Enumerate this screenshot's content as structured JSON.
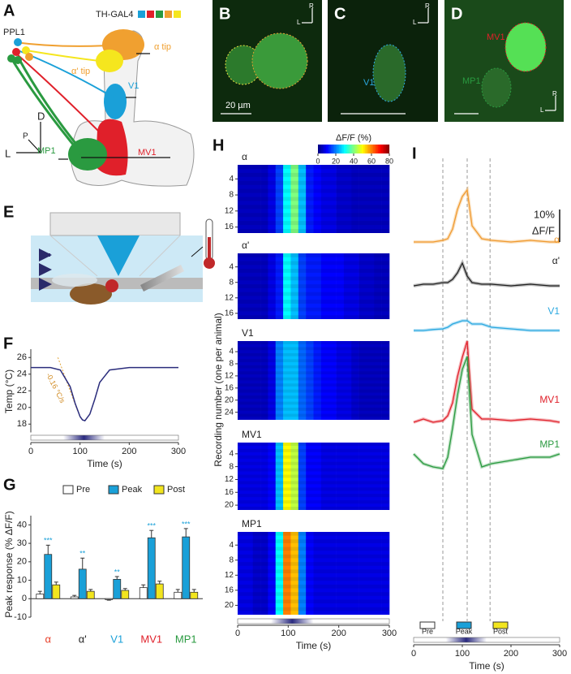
{
  "panel_labels": [
    "A",
    "B",
    "C",
    "D",
    "E",
    "F",
    "G",
    "H",
    "I"
  ],
  "anatomy": {
    "driver": "TH-GAL4",
    "cluster": "PPL1",
    "regions": [
      "α tip",
      "α' tip",
      "V1",
      "MV1",
      "MP1"
    ],
    "orientation": [
      "D",
      "P",
      "L"
    ]
  },
  "images": [
    {
      "orientation": [
        "R",
        "L"
      ],
      "scale_bar": "20 µm"
    },
    {
      "orientation": [
        "R",
        "L"
      ],
      "regions": [
        "V1"
      ]
    },
    {
      "orientation": [
        "R",
        "L"
      ],
      "regions": [
        "MV1",
        "MP1"
      ]
    }
  ],
  "chart_data": [
    {
      "type": "line",
      "ylabel": "Temp (°C)",
      "xlabel": "Time (s)",
      "annotation": "-0.16 °C/s",
      "x": [
        0,
        40,
        60,
        80,
        90,
        100,
        105,
        110,
        120,
        130,
        140,
        160,
        200,
        300
      ],
      "values": [
        24.8,
        24.8,
        24.5,
        22.5,
        20.5,
        18.9,
        18.5,
        18.4,
        19.2,
        21,
        23,
        24.5,
        24.8,
        24.8
      ],
      "color": "#2b2d7c",
      "xlim": [
        0,
        300
      ],
      "xticks": [
        0,
        100,
        200,
        300
      ],
      "ylim": [
        17,
        27
      ],
      "yticks": [
        18,
        20,
        22,
        24,
        26
      ]
    },
    {
      "type": "bar",
      "ylabel": "Peak response (% ΔF/F)",
      "categories": [
        "α",
        "α'",
        "V1",
        "MV1",
        "MP1"
      ],
      "category_colors": [
        "#e8402a",
        "#222222",
        "#1aa0d8",
        "#e0202a",
        "#2a9a40"
      ],
      "series": [
        {
          "name": "Pre",
          "color": "#ffffff",
          "values": [
            2.5,
            1,
            -0.5,
            6,
            3.5
          ],
          "errors": [
            1.5,
            0.8,
            0.3,
            1.5,
            1.5
          ]
        },
        {
          "name": "Peak",
          "color": "#1aa0d8",
          "values": [
            24,
            16,
            10.5,
            33,
            33.5
          ],
          "errors": [
            5,
            6,
            1.5,
            4,
            4.5
          ]
        },
        {
          "name": "Post",
          "color": "#f2e51e",
          "values": [
            7.5,
            4,
            4.5,
            8,
            3.5
          ],
          "errors": [
            1.5,
            1,
            1,
            1.5,
            1.5
          ]
        }
      ],
      "significance": [
        "***",
        "**",
        "**",
        "***",
        "***"
      ],
      "ylim": [
        -10,
        45
      ],
      "yticks": [
        -10,
        0,
        10,
        20,
        30,
        40
      ]
    },
    {
      "type": "heatmap",
      "ylabel": "Recording number (one per animal)",
      "xlabel": "Time (s)",
      "colorbar_label": "ΔF/F (%)",
      "clim": [
        0,
        80
      ],
      "cticks": [
        0,
        20,
        40,
        60,
        80
      ],
      "xlim": [
        0,
        300
      ],
      "xticks": [
        0,
        100,
        200,
        300
      ],
      "bins": [
        0,
        15,
        30,
        45,
        60,
        75,
        90,
        105,
        120,
        135,
        150,
        165,
        180,
        195,
        210,
        225,
        240,
        255,
        270,
        285,
        300
      ],
      "panels": [
        {
          "name": "α",
          "ylim": [
            0.5,
            17.5
          ],
          "yticks": [
            4,
            8,
            12,
            16
          ],
          "values": [
            5,
            5,
            5,
            5,
            8,
            15,
            30,
            40,
            25,
            12,
            10,
            8,
            8,
            6,
            6,
            5,
            5,
            5,
            5,
            5
          ]
        },
        {
          "name": "α'",
          "ylim": [
            0.5,
            17.5
          ],
          "yticks": [
            4,
            8,
            12,
            16
          ],
          "values": [
            5,
            5,
            5,
            5,
            8,
            12,
            30,
            25,
            15,
            12,
            12,
            10,
            10,
            10,
            8,
            8,
            6,
            6,
            5,
            5
          ]
        },
        {
          "name": "V1",
          "ylim": [
            0.5,
            26.5
          ],
          "yticks": [
            4,
            8,
            12,
            16,
            20,
            24
          ],
          "values": [
            5,
            5,
            5,
            5,
            8,
            20,
            25,
            25,
            18,
            15,
            12,
            10,
            10,
            8,
            8,
            6,
            5,
            5,
            5,
            5
          ]
        },
        {
          "name": "MV1",
          "ylim": [
            0.5,
            21.5
          ],
          "yticks": [
            4,
            8,
            12,
            16,
            20
          ],
          "values": [
            8,
            8,
            8,
            8,
            10,
            25,
            50,
            45,
            15,
            10,
            10,
            8,
            8,
            8,
            8,
            8,
            8,
            8,
            8,
            8
          ]
        },
        {
          "name": "MP1",
          "ylim": [
            0.5,
            22.5
          ],
          "yticks": [
            4,
            8,
            12,
            16,
            20
          ],
          "values": [
            8,
            8,
            6,
            6,
            10,
            30,
            60,
            55,
            20,
            10,
            8,
            8,
            8,
            8,
            8,
            8,
            8,
            8,
            8,
            8
          ]
        }
      ]
    },
    {
      "type": "line",
      "xlabel": "Time (s)",
      "scale_bar": {
        "value": 10,
        "label": "10%",
        "unit": "ΔF/F"
      },
      "x": [
        0,
        20,
        40,
        60,
        70,
        80,
        90,
        100,
        110,
        120,
        140,
        160,
        200,
        240,
        280,
        300
      ],
      "series": [
        {
          "name": "α",
          "color": "#f09a30",
          "values": [
            0,
            0,
            0,
            0.5,
            1,
            4,
            10,
            14,
            16,
            5,
            1,
            0.5,
            0,
            0.5,
            0,
            0
          ]
        },
        {
          "name": "α'",
          "color": "#222222",
          "values": [
            0,
            0.5,
            0.5,
            1,
            1,
            2,
            4,
            7,
            3,
            1,
            0.5,
            0.5,
            0,
            0.5,
            0,
            0
          ]
        },
        {
          "name": "V1",
          "color": "#2aa8e0",
          "values": [
            0,
            0,
            0.3,
            0.5,
            1,
            2,
            2.5,
            3,
            3,
            2,
            2,
            1,
            0.5,
            0,
            0,
            0
          ]
        },
        {
          "name": "MV1",
          "color": "#e0202a",
          "values": [
            0,
            1,
            0,
            0.5,
            2,
            6,
            14,
            20,
            25,
            4,
            1,
            1,
            0.5,
            1,
            0.5,
            0
          ]
        },
        {
          "name": "MP1",
          "color": "#2a9a40",
          "values": [
            4,
            1,
            0,
            -0.5,
            3,
            12,
            22,
            30,
            34,
            10,
            0,
            1,
            2,
            3,
            3,
            4
          ]
        }
      ],
      "xlim": [
        0,
        300
      ],
      "xticks": [
        0,
        100,
        200,
        300
      ],
      "windows": [
        60,
        110,
        157
      ],
      "window_legend": [
        {
          "name": "Pre",
          "color": "#ffffff"
        },
        {
          "name": "Peak",
          "color": "#1aa0d8"
        },
        {
          "name": "Post",
          "color": "#f2e51e"
        }
      ]
    }
  ]
}
